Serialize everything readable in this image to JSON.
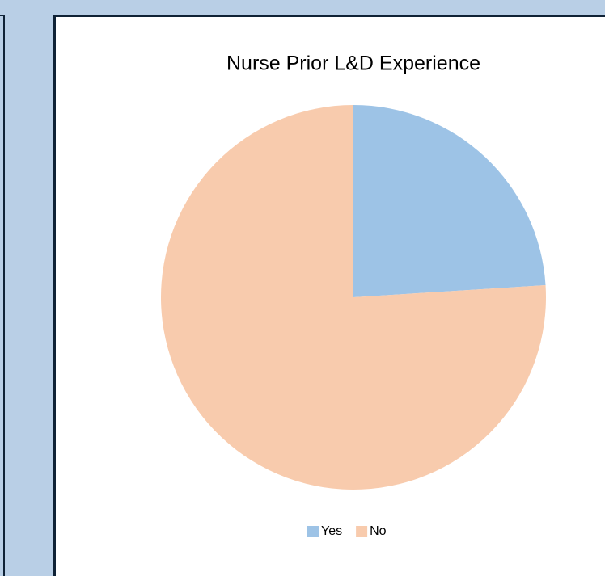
{
  "chart_data": {
    "type": "pie",
    "title": "Nurse Prior L&D Experience",
    "categories": [
      "Yes",
      "No"
    ],
    "values": [
      24,
      76
    ],
    "colors": [
      "#9dc3e6",
      "#f8cbad"
    ],
    "legend": "bottom"
  }
}
